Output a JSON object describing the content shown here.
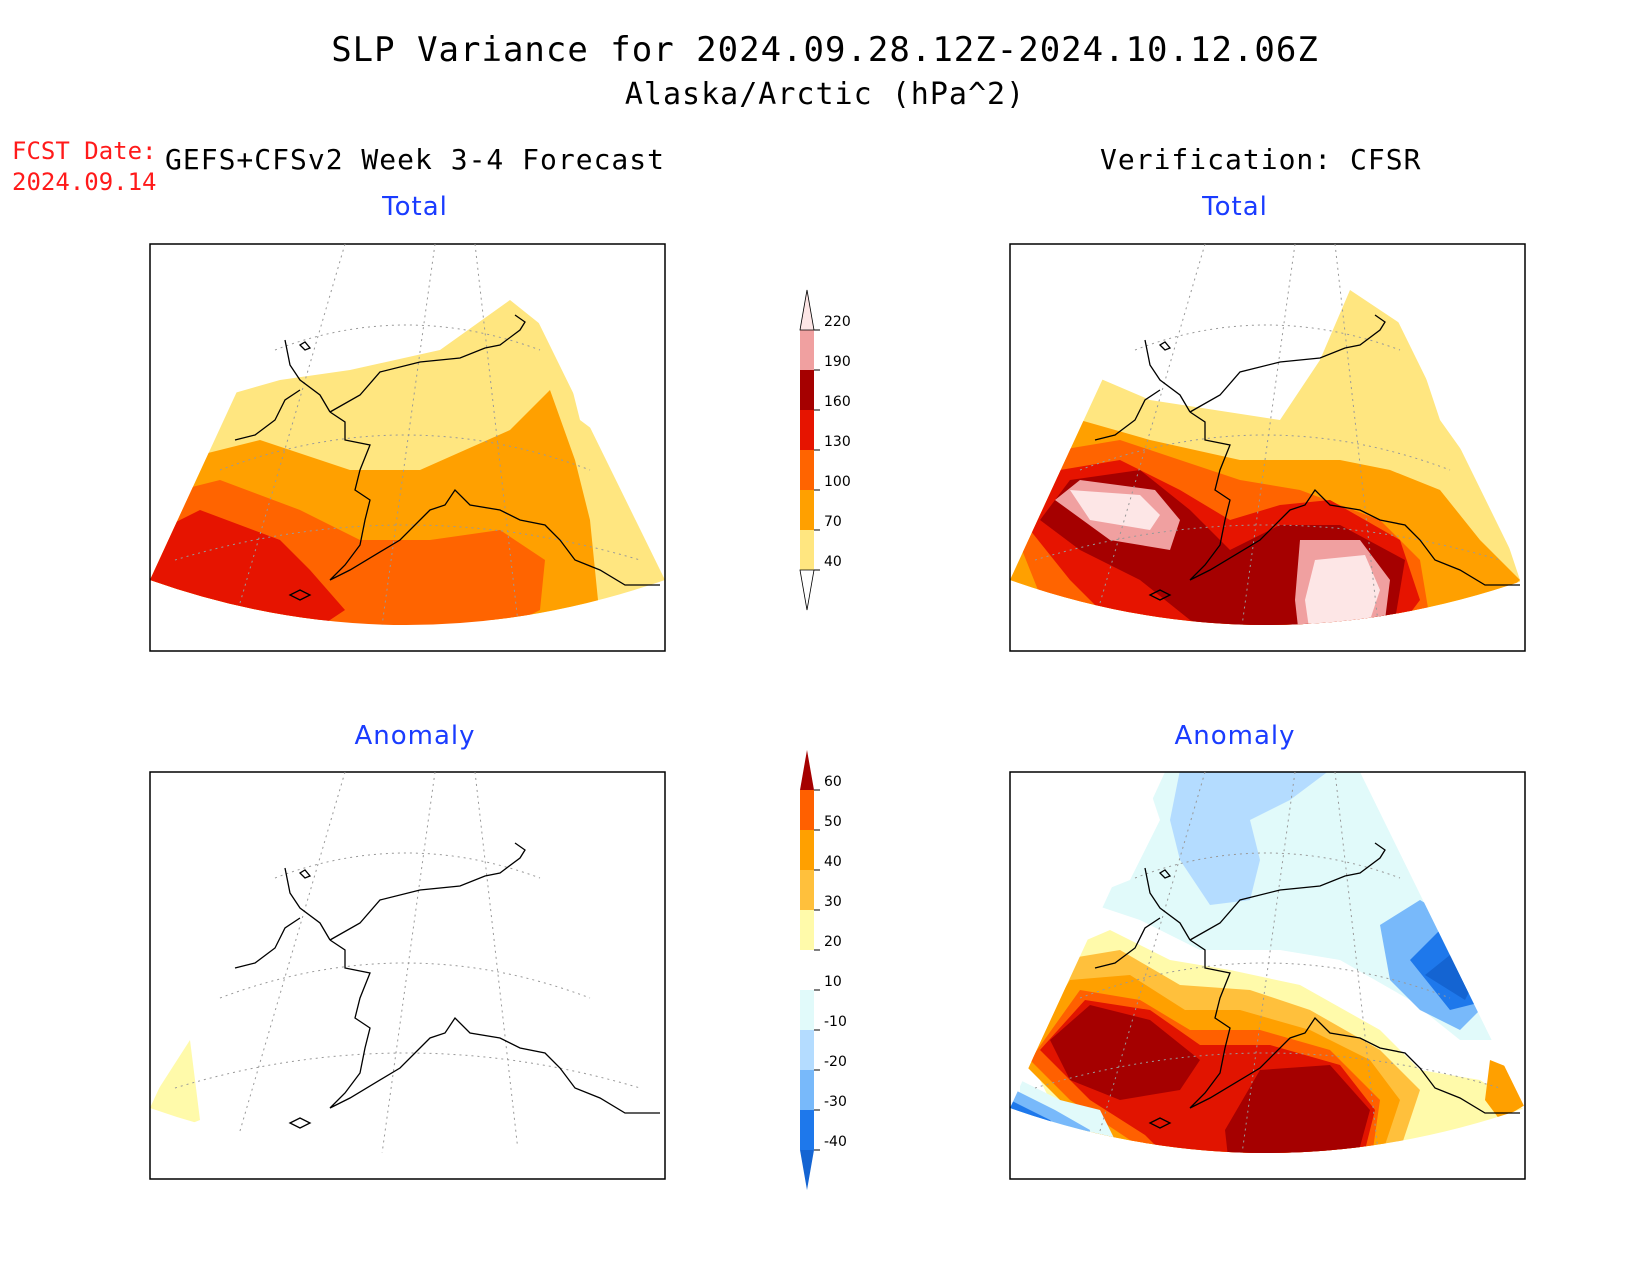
{
  "header": {
    "title": "SLP Variance for 2024.09.28.12Z-2024.10.12.06Z",
    "subtitle": "Alaska/Arctic (hPa^2)",
    "fcst_label": "FCST Date:",
    "fcst_date": "2024.09.14",
    "left_heading": "GEFS+CFSv2 Week 3-4 Forecast",
    "right_heading": "Verification: CFSR"
  },
  "panels": {
    "forecast_total": "Total",
    "verification_total": "Total",
    "forecast_anomaly": "Anomaly",
    "verification_anomaly": "Anomaly"
  },
  "colorbars": {
    "total": {
      "labels": [
        "40",
        "70",
        "100",
        "130",
        "160",
        "190",
        "220"
      ],
      "colors": [
        "#ffe680",
        "#ffa000",
        "#ff6400",
        "#e61400",
        "#a50000",
        "#f0a0a0",
        "#fde6e6"
      ]
    },
    "anomaly": {
      "labels": [
        "-40",
        "-30",
        "-20",
        "-10",
        "10",
        "20",
        "30",
        "40",
        "50",
        "60"
      ],
      "colors": [
        "#1464d2",
        "#1e78eb",
        "#78b9fa",
        "#b4dcff",
        "#e1fafa",
        "#ffffff",
        "#fffaaa",
        "#ffc03c",
        "#ffa000",
        "#ff6000",
        "#e11400",
        "#a50000"
      ]
    }
  }
}
